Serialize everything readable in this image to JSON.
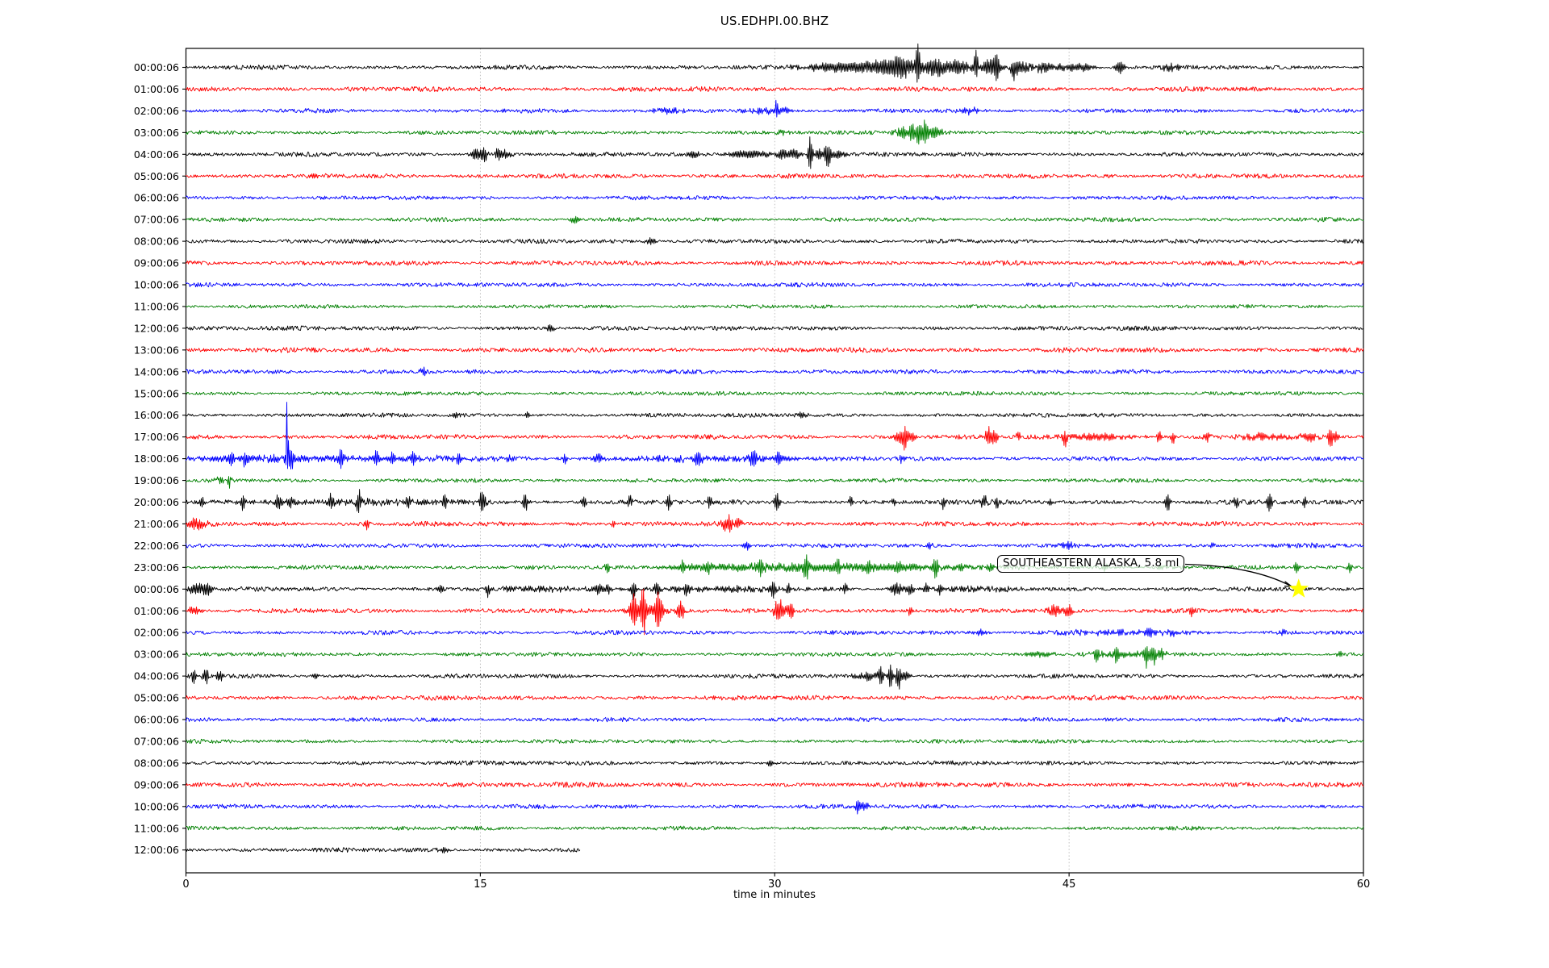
{
  "title": "US.EDHPI.00.BHZ",
  "chart_data": {
    "type": "line",
    "subtype": "seismogram-helicorder-dayplot",
    "title": "US.EDHPI.00.BHZ",
    "xlabel": "time in minutes",
    "xlim": [
      0,
      60
    ],
    "x_ticks": [
      0,
      15,
      30,
      45,
      60
    ],
    "x_gridlines": [
      15,
      30,
      45
    ],
    "grid": "vertical-dotted",
    "color_map": {
      "k": "#000000",
      "r": "#ff0000",
      "b": "#0000ff",
      "g": "#008000"
    },
    "events_format": "[minute, peak_amplitude_px, envelope_width_min, optional_downward_scale]",
    "annotation": {
      "text": "SOUTHEASTERN ALASKA, 5.8 ml",
      "marker": "yellow-star",
      "points_to": {
        "row_label": "00:00:06",
        "row_index": 24,
        "minute": 56.7
      }
    },
    "rows": [
      {
        "label": "00:00:06",
        "color": "k",
        "base": 2.6,
        "events": [
          [
            33,
            4,
            1.2
          ],
          [
            35.8,
            5,
            0.8
          ],
          [
            36.4,
            8,
            0.25
          ],
          [
            36.8,
            5,
            2.5
          ],
          [
            37.3,
            26,
            0.08,
            0.6
          ],
          [
            38.2,
            7,
            0.3
          ],
          [
            39.3,
            6,
            0.4
          ],
          [
            40.25,
            28,
            0.07,
            0.4
          ],
          [
            40.9,
            8,
            0.3
          ],
          [
            41.3,
            14,
            0.1
          ],
          [
            42.2,
            8,
            0.15,
            2
          ],
          [
            42.7,
            6,
            0.2
          ],
          [
            43.8,
            6,
            0.5
          ],
          [
            45.5,
            5,
            0.6
          ],
          [
            47.6,
            7,
            0.2
          ],
          [
            50.2,
            5,
            0.3
          ]
        ]
      },
      {
        "label": "01:00:06",
        "color": "r",
        "base": 2.8,
        "events": []
      },
      {
        "label": "02:00:06",
        "color": "b",
        "base": 2.5,
        "events": [
          [
            24.5,
            3,
            0.6
          ],
          [
            29.4,
            4,
            0.4
          ],
          [
            30.1,
            13,
            0.06,
            0.5
          ],
          [
            30.4,
            4,
            0.3
          ],
          [
            40,
            3.5,
            0.3
          ]
        ]
      },
      {
        "label": "03:00:06",
        "color": "g",
        "base": 2.4,
        "events": [
          [
            30.5,
            3,
            0.3
          ],
          [
            36.5,
            7,
            0.15
          ],
          [
            37,
            12,
            0.08
          ],
          [
            37.2,
            4,
            0.8
          ],
          [
            37.35,
            8,
            0.1,
            1.7
          ],
          [
            37.65,
            11,
            0.08
          ],
          [
            38.1,
            5,
            0.3
          ]
        ]
      },
      {
        "label": "04:00:06",
        "color": "k",
        "base": 2.5,
        "events": [
          [
            14.9,
            7,
            0.3
          ],
          [
            15.2,
            9,
            0.08
          ],
          [
            15.9,
            8,
            0.1
          ],
          [
            16.3,
            5,
            0.2
          ],
          [
            25.9,
            4,
            0.2
          ],
          [
            28.7,
            5,
            0.8
          ],
          [
            30.4,
            7,
            0.15
          ],
          [
            31,
            6,
            0.2
          ],
          [
            31.8,
            22,
            0.08
          ],
          [
            32.3,
            8,
            0.2
          ],
          [
            32.7,
            13,
            0.1,
            1.5
          ],
          [
            33.2,
            5,
            0.3
          ]
        ]
      },
      {
        "label": "05:00:06",
        "color": "r",
        "base": 2.7,
        "events": []
      },
      {
        "label": "06:00:06",
        "color": "b",
        "base": 2.4,
        "events": []
      },
      {
        "label": "07:00:06",
        "color": "g",
        "base": 2.4,
        "events": [
          [
            19.8,
            5,
            0.15
          ]
        ]
      },
      {
        "label": "08:00:06",
        "color": "k",
        "base": 2.5,
        "events": [
          [
            23.7,
            4,
            0.2
          ]
        ]
      },
      {
        "label": "09:00:06",
        "color": "r",
        "base": 2.8,
        "events": []
      },
      {
        "label": "10:00:06",
        "color": "b",
        "base": 2.5,
        "events": []
      },
      {
        "label": "11:00:06",
        "color": "g",
        "base": 2.2,
        "events": []
      },
      {
        "label": "12:00:06",
        "color": "k",
        "base": 2.6,
        "events": [
          [
            18.6,
            4,
            0.15
          ]
        ]
      },
      {
        "label": "13:00:06",
        "color": "r",
        "base": 2.9,
        "events": []
      },
      {
        "label": "14:00:06",
        "color": "b",
        "base": 2.6,
        "events": [
          [
            12.1,
            4,
            0.12
          ]
        ]
      },
      {
        "label": "15:00:06",
        "color": "g",
        "base": 2.3,
        "events": []
      },
      {
        "label": "16:00:06",
        "color": "k",
        "base": 2.4,
        "events": [
          [
            13.8,
            5,
            0.1
          ],
          [
            17.4,
            4,
            0.1
          ],
          [
            31.4,
            4,
            0.2
          ]
        ]
      },
      {
        "label": "17:00:06",
        "color": "r",
        "base": 2.7,
        "events": [
          [
            36.4,
            8,
            0.2
          ],
          [
            36.65,
            13,
            0.07,
            1.6
          ],
          [
            37,
            6,
            0.2
          ],
          [
            40.85,
            12,
            0.1
          ],
          [
            41.2,
            8,
            0.15
          ],
          [
            42.4,
            6,
            0.08
          ],
          [
            44.8,
            5,
            0.08,
            2.2
          ],
          [
            46.5,
            4,
            1.2
          ],
          [
            49.6,
            7,
            0.1
          ],
          [
            50.3,
            6,
            0.08,
            2
          ],
          [
            52,
            6,
            0.12
          ],
          [
            54.8,
            4,
            0.8
          ],
          [
            57.2,
            5,
            0.3
          ],
          [
            58.3,
            11,
            0.08,
            1.5
          ],
          [
            58.6,
            7,
            0.12
          ]
        ]
      },
      {
        "label": "18:00:06",
        "color": "b",
        "base": 2.7,
        "events": [
          [
            3.5,
            2.5,
            2.5
          ],
          [
            10,
            2.5,
            4
          ],
          [
            27,
            2.5,
            4
          ],
          [
            2.3,
            9,
            0.08
          ],
          [
            3,
            7,
            0.07
          ],
          [
            5.15,
            80,
            0.04,
            0.18
          ],
          [
            5.35,
            10,
            0.1
          ],
          [
            7.9,
            9,
            0.08
          ],
          [
            9.7,
            8,
            0.08
          ],
          [
            10.5,
            6,
            0.08
          ],
          [
            11.6,
            7,
            0.08
          ],
          [
            13.9,
            6,
            0.08
          ],
          [
            16.5,
            5,
            0.1
          ],
          [
            19.3,
            7,
            0.08
          ],
          [
            21,
            5,
            0.15
          ],
          [
            26.1,
            8,
            0.12
          ],
          [
            28.9,
            8,
            0.15
          ],
          [
            30.2,
            7,
            0.15
          ],
          [
            36.5,
            6,
            0.1
          ]
        ]
      },
      {
        "label": "19:00:06",
        "color": "g",
        "base": 2.3,
        "events": [
          [
            1.8,
            3,
            0.3
          ],
          [
            2.2,
            8,
            0.06
          ]
        ]
      },
      {
        "label": "20:00:06",
        "color": "k",
        "base": 2.9,
        "events": [
          [
            8,
            2,
            6
          ],
          [
            0.8,
            7,
            0.08
          ],
          [
            2.9,
            12,
            0.08
          ],
          [
            4.7,
            10,
            0.1
          ],
          [
            5.3,
            8,
            0.08
          ],
          [
            7.4,
            11,
            0.08
          ],
          [
            8.8,
            13,
            0.08
          ],
          [
            11.3,
            8,
            0.08
          ],
          [
            13.2,
            9,
            0.08
          ],
          [
            15.1,
            14,
            0.1
          ],
          [
            17.3,
            13,
            0.08
          ],
          [
            20.3,
            8,
            0.08
          ],
          [
            22.6,
            9,
            0.1
          ],
          [
            24.6,
            9,
            0.08,
            1.8
          ],
          [
            26.7,
            8,
            0.1
          ],
          [
            30.1,
            12,
            0.1
          ],
          [
            33.9,
            8,
            0.08
          ],
          [
            36.1,
            7,
            0.08
          ],
          [
            38.6,
            8,
            0.08
          ],
          [
            40.7,
            9,
            0.12
          ],
          [
            41.3,
            7,
            0.08
          ],
          [
            44,
            6,
            0.08
          ],
          [
            50,
            13,
            0.1
          ],
          [
            53.5,
            7,
            0.1
          ],
          [
            55.2,
            12,
            0.1
          ],
          [
            57,
            6,
            0.08
          ]
        ]
      },
      {
        "label": "21:00:06",
        "color": "r",
        "base": 2.8,
        "events": [
          [
            0.5,
            7,
            0.4
          ],
          [
            9.2,
            8,
            0.08
          ],
          [
            21.8,
            4,
            0.08
          ],
          [
            27.6,
            11,
            0.2
          ],
          [
            28.1,
            7,
            0.15
          ]
        ]
      },
      {
        "label": "22:00:06",
        "color": "b",
        "base": 2.5,
        "events": [
          [
            28.6,
            6,
            0.12
          ],
          [
            37.9,
            5,
            0.1
          ],
          [
            45,
            3,
            0.4
          ],
          [
            52.3,
            4,
            0.08
          ],
          [
            57.5,
            5,
            0.08
          ]
        ]
      },
      {
        "label": "23:00:06",
        "color": "g",
        "base": 2.5,
        "events": [
          [
            27,
            3,
            2
          ],
          [
            32,
            3.5,
            3
          ],
          [
            37,
            3,
            2.5
          ],
          [
            21.5,
            5,
            0.12
          ],
          [
            25.3,
            6,
            0.1
          ],
          [
            26.6,
            6,
            0.08
          ],
          [
            29.3,
            10,
            0.08
          ],
          [
            31.6,
            14,
            0.08
          ],
          [
            33.2,
            8,
            0.1
          ],
          [
            34.8,
            7,
            0.08
          ],
          [
            36.3,
            6,
            0.08
          ],
          [
            38.2,
            9,
            0.08,
            1.8
          ],
          [
            39.5,
            6,
            0.08
          ],
          [
            41,
            5,
            0.1
          ],
          [
            46.8,
            5,
            0.12
          ],
          [
            49.7,
            4,
            0.12
          ],
          [
            56.6,
            9,
            0.08
          ],
          [
            59.3,
            6,
            0.1
          ]
        ]
      },
      {
        "label": "00:00:06",
        "color": "k",
        "base": 2.6,
        "events": [
          [
            0.6,
            8,
            0.3
          ],
          [
            1.1,
            6,
            0.15
          ],
          [
            13,
            4,
            0.1
          ],
          [
            15.4,
            6,
            0.08,
            2
          ],
          [
            18,
            2.5,
            2
          ],
          [
            21,
            6,
            0.15
          ],
          [
            21.5,
            5,
            0.12
          ],
          [
            22.8,
            8,
            0.1,
            1.7
          ],
          [
            24,
            7,
            0.1
          ],
          [
            25.5,
            8,
            0.1
          ],
          [
            27,
            2.5,
            3
          ],
          [
            29.9,
            9,
            0.1
          ],
          [
            30.7,
            7,
            0.08
          ],
          [
            33.6,
            8,
            0.08
          ],
          [
            36.2,
            7,
            0.25
          ],
          [
            36.9,
            6,
            0.15
          ],
          [
            37.7,
            7,
            0.08
          ],
          [
            38.4,
            6,
            0.08
          ],
          [
            40,
            2.5,
            1.5
          ]
        ]
      },
      {
        "label": "01:00:06",
        "color": "r",
        "base": 2.8,
        "events": [
          [
            0.4,
            5,
            0.25
          ],
          [
            22.8,
            18,
            0.12
          ],
          [
            23.3,
            26,
            0.1
          ],
          [
            23.5,
            7,
            0.7
          ],
          [
            24.1,
            22,
            0.12
          ],
          [
            25.2,
            12,
            0.15
          ],
          [
            30.2,
            13,
            0.2
          ],
          [
            30.8,
            8,
            0.15
          ],
          [
            36.9,
            6,
            0.08
          ],
          [
            44.3,
            8,
            0.25
          ],
          [
            45,
            7,
            0.15,
            1.6
          ],
          [
            51.3,
            5,
            0.1,
            1.8
          ]
        ]
      },
      {
        "label": "02:00:06",
        "color": "b",
        "base": 2.5,
        "events": [
          [
            40.5,
            4,
            0.25
          ],
          [
            48,
            2.5,
            2.5
          ],
          [
            49.1,
            6,
            0.08
          ],
          [
            50.3,
            4,
            0.08
          ],
          [
            55.9,
            5,
            0.08
          ]
        ]
      },
      {
        "label": "03:00:06",
        "color": "g",
        "base": 2.4,
        "events": [
          [
            43.5,
            3.5,
            0.5
          ],
          [
            46.4,
            7,
            0.1
          ],
          [
            47.4,
            12,
            0.07
          ],
          [
            48,
            3,
            1.5
          ],
          [
            48.95,
            15,
            0.07
          ],
          [
            49.3,
            8,
            0.1,
            1.5
          ],
          [
            49.7,
            6,
            0.08
          ],
          [
            58.8,
            5,
            0.1
          ]
        ]
      },
      {
        "label": "04:00:06",
        "color": "k",
        "base": 2.5,
        "events": [
          [
            0.4,
            8,
            0.12
          ],
          [
            1,
            10,
            0.1
          ],
          [
            1.7,
            7,
            0.12
          ],
          [
            6.6,
            5,
            0.08
          ],
          [
            34.8,
            5,
            0.5
          ],
          [
            35.4,
            13,
            0.08
          ],
          [
            35.9,
            18,
            0.08
          ],
          [
            36.3,
            11,
            0.1,
            1.6
          ],
          [
            36.7,
            6,
            0.15
          ]
        ]
      },
      {
        "label": "05:00:06",
        "color": "r",
        "base": 2.8,
        "events": []
      },
      {
        "label": "06:00:06",
        "color": "b",
        "base": 2.4,
        "events": []
      },
      {
        "label": "07:00:06",
        "color": "g",
        "base": 2.3,
        "events": []
      },
      {
        "label": "08:00:06",
        "color": "k",
        "base": 2.5,
        "events": [
          [
            29.8,
            3.5,
            0.15
          ]
        ]
      },
      {
        "label": "09:00:06",
        "color": "r",
        "base": 2.9,
        "events": []
      },
      {
        "label": "10:00:06",
        "color": "b",
        "base": 2.5,
        "events": [
          [
            34.2,
            10,
            0.06
          ],
          [
            34.5,
            5,
            0.25
          ]
        ]
      },
      {
        "label": "11:00:06",
        "color": "g",
        "base": 2.3,
        "events": []
      },
      {
        "label": "12:00:06",
        "color": "k",
        "base": 2.6,
        "dur": 20.1,
        "events": [
          [
            13.1,
            4,
            0.2
          ]
        ]
      }
    ]
  }
}
